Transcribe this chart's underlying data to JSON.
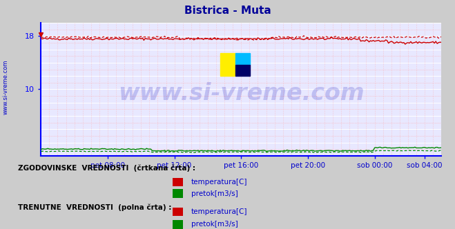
{
  "title": "Bistrica - Muta",
  "title_color": "#000099",
  "bg_color": "#cccccc",
  "plot_bg_color": "#e8e8ff",
  "grid_color_major": "#ffffff",
  "grid_color_minor": "#ffaaaa",
  "xlabel_color": "#0000cc",
  "ylabel_ticks": [
    10,
    18
  ],
  "ylim": [
    0,
    20
  ],
  "xlim": [
    0,
    288
  ],
  "xtick_labels": [
    "pet 08:00",
    "pet 12:00",
    "pet 16:00",
    "pet 20:00",
    "sob 00:00",
    "sob 04:00"
  ],
  "xtick_positions": [
    48,
    96,
    144,
    192,
    240,
    276
  ],
  "temp_solid_value": 17.6,
  "temp_dashed_value": 17.85,
  "pretok_solid_value": 0.75,
  "pretok_dashed_value": 0.55,
  "watermark": "www.si-vreme.com",
  "watermark_color": "#0000bb",
  "watermark_alpha": 0.18,
  "left_label": "www.si-vreme.com",
  "left_label_color": "#0000cc",
  "legend_text1": "ZGODOVINSKE  VREDNOSTI  (črtkana črta) :",
  "legend_text2": "TRENUTNE  VREDNOSTI  (polna črta) :",
  "legend_items": [
    "temperatura[C]",
    "pretok[m3/s]"
  ],
  "border_color": "#0000ff",
  "red_color": "#cc0000",
  "green_color": "#008800",
  "blue_color": "#0000cc",
  "dark_red": "#880000"
}
